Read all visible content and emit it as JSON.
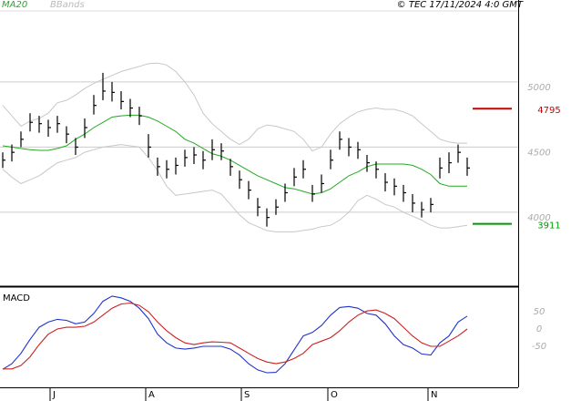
{
  "chart_data": [
    {
      "type": "ohlc",
      "legend": [
        "MA20",
        "BBands"
      ],
      "annotation": "© TEC 17/11/2024 4:0 GMT",
      "high": [
        4460,
        4520,
        4620,
        4760,
        4740,
        4710,
        4740,
        4660,
        4570,
        4720,
        4900,
        5070,
        5000,
        4930,
        4870,
        4810,
        4600,
        4420,
        4400,
        4420,
        4480,
        4500,
        4470,
        4560,
        4530,
        4410,
        4320,
        4240,
        4110,
        4030,
        4100,
        4220,
        4340,
        4400,
        4210,
        4290,
        4480,
        4620,
        4570,
        4540,
        4440,
        4390,
        4300,
        4260,
        4210,
        4140,
        4080,
        4110,
        4420,
        4460,
        4520,
        4420
      ],
      "low": [
        4340,
        4390,
        4500,
        4620,
        4610,
        4580,
        4610,
        4530,
        4440,
        4570,
        4750,
        4860,
        4850,
        4790,
        4730,
        4670,
        4420,
        4280,
        4260,
        4290,
        4350,
        4370,
        4330,
        4400,
        4400,
        4280,
        4180,
        4100,
        3970,
        3890,
        3980,
        4080,
        4200,
        4260,
        4080,
        4150,
        4330,
        4480,
        4430,
        4410,
        4310,
        4260,
        4160,
        4130,
        4080,
        4000,
        3960,
        4000,
        4260,
        4300,
        4380,
        4280
      ],
      "close": [
        4400,
        4460,
        4560,
        4690,
        4680,
        4650,
        4680,
        4600,
        4500,
        4650,
        4820,
        4930,
        4920,
        4850,
        4800,
        4740,
        4500,
        4350,
        4330,
        4360,
        4420,
        4440,
        4400,
        4480,
        4470,
        4350,
        4250,
        4170,
        4040,
        3960,
        4040,
        4150,
        4270,
        4330,
        4140,
        4220,
        4400,
        4560,
        4500,
        4480,
        4380,
        4330,
        4230,
        4200,
        4150,
        4070,
        4020,
        4060,
        4340,
        4380,
        4460,
        4340
      ],
      "color": "#000000",
      "overlays": [
        {
          "color": "#22aa22",
          "values": [
            4510,
            4500,
            4490,
            4480,
            4475,
            4475,
            4490,
            4510,
            4560,
            4600,
            4650,
            4690,
            4730,
            4740,
            4745,
            4745,
            4730,
            4700,
            4660,
            4620,
            4560,
            4530,
            4490,
            4450,
            4430,
            4400,
            4360,
            4320,
            4280,
            4250,
            4220,
            4190,
            4180,
            4160,
            4140,
            4150,
            4180,
            4230,
            4280,
            4310,
            4350,
            4370,
            4370,
            4370,
            4370,
            4360,
            4330,
            4290,
            4220,
            4200,
            4200,
            4200
          ]
        },
        {
          "color": "#c8c8c8",
          "values": [
            4820,
            4740,
            4660,
            4700,
            4720,
            4760,
            4840,
            4860,
            4900,
            4950,
            4990,
            5020,
            5050,
            5080,
            5100,
            5120,
            5140,
            5145,
            5130,
            5080,
            5000,
            4900,
            4760,
            4680,
            4620,
            4560,
            4520,
            4560,
            4640,
            4670,
            4660,
            4640,
            4620,
            4560,
            4470,
            4500,
            4600,
            4680,
            4730,
            4770,
            4790,
            4800,
            4790,
            4790,
            4770,
            4740,
            4680,
            4620,
            4560,
            4540,
            4530,
            4530
          ]
        },
        {
          "color": "#c8c8c8",
          "values": [
            4330,
            4270,
            4220,
            4250,
            4280,
            4330,
            4380,
            4400,
            4420,
            4460,
            4480,
            4500,
            4510,
            4520,
            4510,
            4500,
            4420,
            4320,
            4200,
            4130,
            4140,
            4150,
            4160,
            4170,
            4140,
            4060,
            3980,
            3920,
            3890,
            3860,
            3850,
            3850,
            3850,
            3860,
            3870,
            3890,
            3900,
            3940,
            4000,
            4090,
            4130,
            4100,
            4060,
            4040,
            4000,
            3970,
            3940,
            3900,
            3880,
            3880,
            3890,
            3900
          ]
        }
      ],
      "levels": [
        {
          "value": 4795,
          "color": "#cc0000"
        },
        {
          "value": 3911,
          "color": "#009900"
        }
      ],
      "ylim": [
        3440,
        5545
      ],
      "yticks": [
        4000,
        4500,
        5000
      ],
      "xlim": [
        -0.3,
        56.6
      ],
      "xticks": [
        {
          "value": 5.2,
          "label": "J"
        },
        {
          "value": 15.7,
          "label": "A"
        },
        {
          "value": 26.2,
          "label": "S"
        },
        {
          "value": 35.7,
          "label": "O"
        },
        {
          "value": 46.7,
          "label": "N"
        }
      ]
    },
    {
      "type": "line",
      "title": "MACD",
      "series": [
        {
          "color": "#2233cc",
          "values": [
            -116,
            -100,
            -70,
            -30,
            5,
            20,
            28,
            25,
            15,
            20,
            45,
            80,
            95,
            90,
            80,
            60,
            30,
            -15,
            -40,
            -55,
            -58,
            -55,
            -50,
            -50,
            -50,
            -58,
            -75,
            -100,
            -118,
            -126,
            -125,
            -100,
            -60,
            -20,
            -10,
            10,
            40,
            62,
            65,
            60,
            45,
            40,
            15,
            -20,
            -45,
            -55,
            -72,
            -75,
            -40,
            -20,
            20,
            37
          ]
        },
        {
          "color": "#cc2222",
          "values": [
            -115,
            -115,
            -105,
            -80,
            -45,
            -15,
            0,
            5,
            5,
            8,
            20,
            40,
            60,
            72,
            75,
            68,
            50,
            20,
            -5,
            -25,
            -40,
            -45,
            -40,
            -37,
            -38,
            -40,
            -55,
            -70,
            -85,
            -95,
            -100,
            -95,
            -85,
            -70,
            -45,
            -35,
            -25,
            -5,
            20,
            40,
            52,
            55,
            45,
            30,
            5,
            -20,
            -40,
            -50,
            -50,
            -35,
            -20,
            0
          ]
        }
      ],
      "ylim": [
        -176,
        113
      ],
      "yticks": [
        -50,
        0,
        50
      ],
      "xlim": [
        -0.3,
        56.6
      ]
    }
  ]
}
